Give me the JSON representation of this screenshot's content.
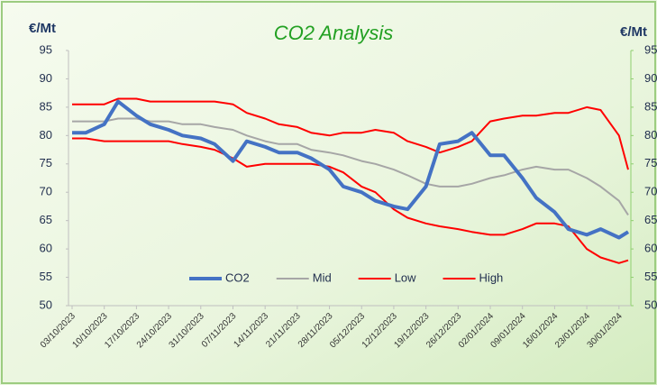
{
  "chart_data": {
    "type": "line",
    "title": "CO2 Analysis",
    "ylabel": "€/Mt",
    "y2label": "€/Mt",
    "x": [
      "03/10/2023",
      "06/10/2023",
      "10/10/2023",
      "13/10/2023",
      "17/10/2023",
      "20/10/2023",
      "24/10/2023",
      "27/10/2023",
      "31/10/2023",
      "03/11/2023",
      "07/11/2023",
      "10/11/2023",
      "14/11/2023",
      "17/11/2023",
      "21/11/2023",
      "24/11/2023",
      "28/11/2023",
      "01/12/2023",
      "05/12/2023",
      "08/12/2023",
      "12/12/2023",
      "15/12/2023",
      "19/12/2023",
      "22/12/2023",
      "26/12/2023",
      "29/12/2023",
      "02/01/2024",
      "05/01/2024",
      "09/01/2024",
      "12/01/2024",
      "16/01/2024",
      "19/01/2024",
      "23/01/2024",
      "26/01/2024",
      "30/01/2024",
      "01/02/2024"
    ],
    "xlim": [
      "03/10/2023",
      "01/02/2024"
    ],
    "xticks": [
      "03/10/2023",
      "10/10/2023",
      "17/10/2023",
      "24/10/2023",
      "31/10/2023",
      "07/11/2023",
      "14/11/2023",
      "21/11/2023",
      "28/11/2023",
      "05/12/2023",
      "12/12/2023",
      "19/12/2023",
      "26/12/2023",
      "02/01/2024",
      "09/01/2024",
      "16/01/2024",
      "23/01/2024",
      "30/01/2024"
    ],
    "ylim": [
      50,
      95
    ],
    "yticks": [
      50,
      55,
      60,
      65,
      70,
      75,
      80,
      85,
      90,
      95
    ],
    "y2lim": [
      50,
      95
    ],
    "y2ticks": [
      50,
      55,
      60,
      65,
      70,
      75,
      80,
      85,
      90,
      95
    ],
    "legend": "lower center",
    "series": [
      {
        "name": "CO2",
        "color": "#4472c4",
        "width": 4,
        "values": [
          80.5,
          80.5,
          82,
          86,
          83.5,
          82,
          81,
          80,
          79.5,
          78.5,
          75.5,
          79,
          78,
          77,
          77,
          76,
          74,
          71,
          70,
          68.5,
          67.5,
          67,
          71,
          78.5,
          79,
          80.5,
          76.5,
          76.5,
          72.5,
          69,
          66.5,
          63.5,
          62.5,
          63.5,
          62,
          63
        ]
      },
      {
        "name": "Mid",
        "color": "#a6a6a6",
        "width": 2,
        "values": [
          82.5,
          82.5,
          82.5,
          83,
          83,
          82.5,
          82.5,
          82,
          82,
          81.5,
          81,
          80,
          79,
          78.5,
          78.5,
          77.5,
          77,
          76.5,
          75.5,
          75,
          74,
          73,
          71.5,
          71,
          71,
          71.5,
          72.5,
          73,
          74,
          74.5,
          74,
          74,
          72.5,
          71,
          68.5,
          66
        ]
      },
      {
        "name": "Low",
        "color": "#ff0000",
        "width": 2,
        "values": [
          79.5,
          79.5,
          79,
          79,
          79,
          79,
          79,
          78.5,
          78,
          77.5,
          76,
          74.5,
          75,
          75,
          75,
          75,
          74.5,
          73.5,
          71,
          70,
          67,
          65.5,
          64.5,
          64,
          63.5,
          63,
          62.5,
          62.5,
          63.5,
          64.5,
          64.5,
          64,
          60,
          58.5,
          57.5,
          58
        ]
      },
      {
        "name": "High",
        "color": "#ff0000",
        "width": 2,
        "values": [
          85.5,
          85.5,
          85.5,
          86.5,
          86.5,
          86,
          86,
          86,
          86,
          86,
          85.5,
          84,
          83,
          82,
          81.5,
          80.5,
          80,
          80.5,
          80.5,
          81,
          80.5,
          79,
          78,
          77,
          78,
          79,
          82.5,
          83,
          83.5,
          83.5,
          84,
          84,
          85,
          84.5,
          80,
          74
        ]
      }
    ]
  }
}
